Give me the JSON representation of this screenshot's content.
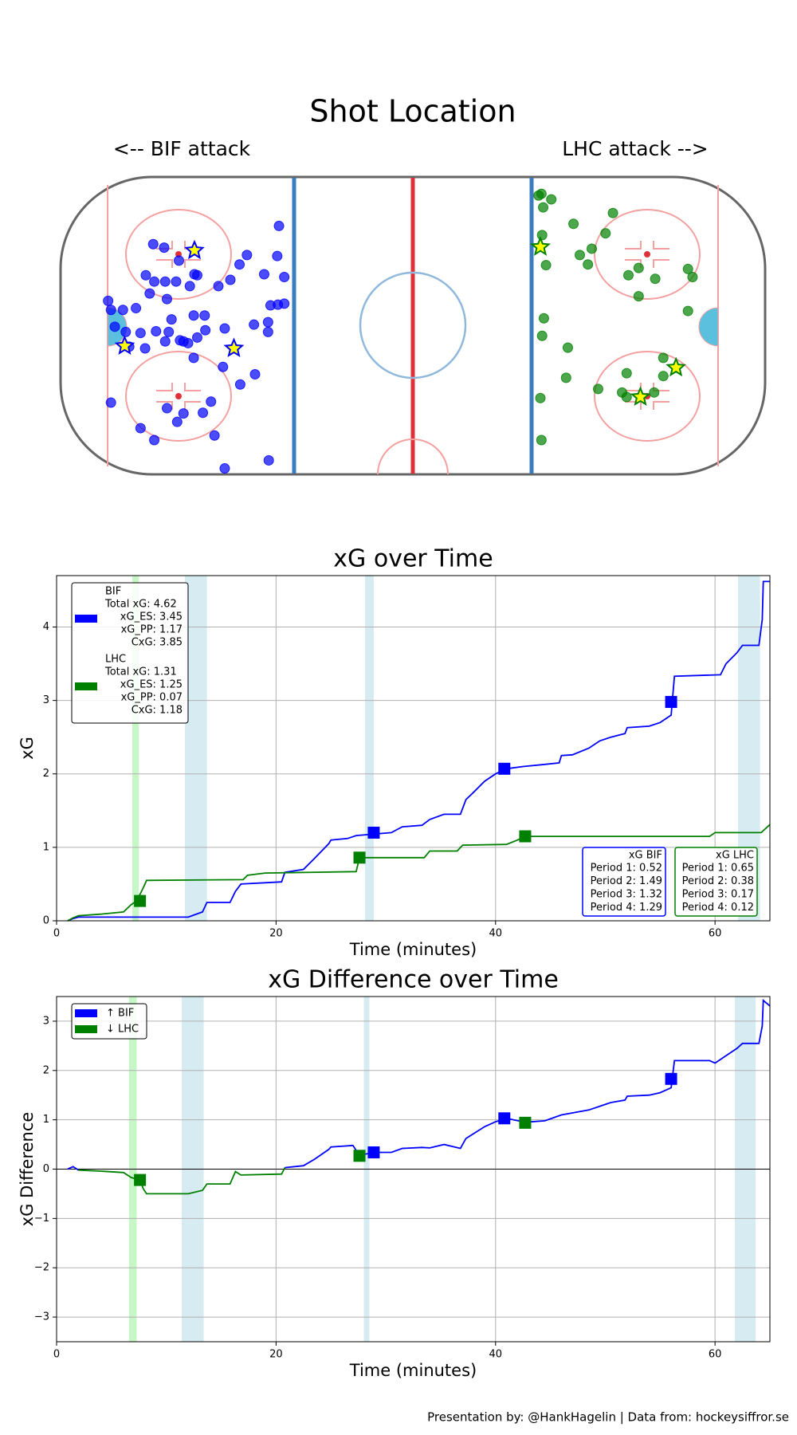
{
  "chart_data": [
    {
      "type": "scatter",
      "title": "Shot Location",
      "annotations": [
        "<-- BIF attack",
        "LHC attack -->"
      ],
      "xlim": [
        -100,
        100
      ],
      "ylim": [
        -42.5,
        42.5
      ],
      "series": [
        {
          "color": "#0000ff",
          "marker": "circle",
          "x": [
            -38.0,
            -73.7,
            -70.6,
            -47.1,
            -38.5,
            -66.4,
            -49.2,
            -42.2,
            -75.8,
            -62.0,
            -61.2,
            -36.5,
            -73.4,
            -70.3,
            -67.2,
            -51.8,
            -55.2,
            -63.3,
            -74.7,
            -69.8,
            -86.5,
            -40.4,
            -38.3,
            -36.5,
            -78.6,
            -85.7,
            -82.3,
            -68.5,
            -62.2,
            -59.1,
            -45.1,
            -41.1,
            -41.1,
            -84.6,
            -53.4,
            -81.5,
            -77.3,
            -72.9,
            -69.3,
            -66.1,
            -65.1,
            -63.8,
            -70.3,
            -61.2,
            -58.9,
            -62.2,
            -80.5,
            -53.9,
            -76.0,
            -44.8,
            -49.0,
            -85.7,
            -69.8,
            -59.6,
            -65.1,
            -57.3,
            -66.9,
            -77.3,
            -56.3,
            -73.4,
            -40.9,
            -53.4
          ],
          "y": [
            28.5,
            23.3,
            22.3,
            20.2,
            19.9,
            18.6,
            17.5,
            14.7,
            14.4,
            14.7,
            14.4,
            13.9,
            12.6,
            12.6,
            12.6,
            13.1,
            11.3,
            11.3,
            9.2,
            7.6,
            7.1,
            5.8,
            6.0,
            6.3,
            5.0,
            4.5,
            4.5,
            1.8,
            2.9,
            2.9,
            0.3,
            1.0,
            -1.8,
            -0.3,
            -0.8,
            -1.8,
            -2.1,
            -1.6,
            -1.8,
            -4.2,
            -4.5,
            -5.0,
            -4.5,
            -3.4,
            -1.3,
            -9.2,
            -6.0,
            -11.8,
            -6.5,
            -13.9,
            -16.8,
            -22.0,
            -23.6,
            -24.9,
            -25.1,
            -21.7,
            -27.5,
            -29.3,
            -31.4,
            -32.7,
            -38.5,
            -40.8
          ]
        },
        {
          "color": "#0000ff",
          "fill": "#ffff00",
          "marker": "star",
          "x": [
            -62.0,
            -50.8,
            -81.8
          ],
          "y": [
            21.5,
            -6.5,
            -5.8
          ]
        },
        {
          "color": "#008000",
          "marker": "circle",
          "x": [
            36.5,
            39.3,
            35.7,
            37.0,
            45.6,
            56.8,
            54.7,
            36.7,
            50.8,
            47.4,
            49.7,
            37.8,
            61.2,
            64.1,
            68.8,
            78.1,
            79.4,
            64.1,
            78.1,
            37.2,
            36.7,
            44.0,
            71.1,
            60.7,
            71.1,
            43.5,
            52.6,
            59.4,
            60.7,
            68.5,
            36.2,
            36.5
          ],
          "y": [
            37.7,
            36.1,
            37.2,
            33.8,
            29.1,
            32.2,
            26.4,
            25.9,
            22.0,
            20.2,
            17.5,
            17.3,
            14.4,
            16.5,
            13.4,
            16.2,
            13.9,
            8.4,
            4.2,
            2.1,
            -2.9,
            -6.3,
            -9.2,
            -13.6,
            -14.4,
            -14.9,
            -18.1,
            -19.1,
            -20.4,
            -19.1,
            -20.7,
            -32.7
          ]
        },
        {
          "color": "#008000",
          "fill": "#ffff00",
          "marker": "star",
          "x": [
            36.2,
            74.7,
            64.6
          ],
          "y": [
            22.5,
            -12.0,
            -20.4
          ]
        }
      ]
    },
    {
      "type": "line",
      "title": "xG over Time",
      "xlabel": "Time (minutes)",
      "ylabel": "xG",
      "xlim": [
        0,
        65
      ],
      "ylim": [
        0,
        4.7
      ],
      "xticks": [
        0,
        20,
        40,
        60
      ],
      "yticks": [
        0,
        1,
        2,
        3,
        4
      ],
      "grid": true,
      "shaded_spans": [
        {
          "start": 6.9,
          "end": 7.5,
          "color": "#90ee90"
        },
        {
          "start": 11.7,
          "end": 13.7,
          "color": "#add8e6"
        },
        {
          "start": 28.1,
          "end": 28.9,
          "color": "#add8e6"
        },
        {
          "start": 62.1,
          "end": 64.1,
          "color": "#add8e6"
        }
      ],
      "series": [
        {
          "name": "BIF",
          "color": "#0000ff",
          "legend_lines": [
            "Total xG: 4.62",
            "xG_ES: 3.45",
            "xG_PP: 1.17",
            "CxG: 3.85"
          ],
          "x": [
            1,
            1.5,
            2,
            12,
            13.3,
            13.7,
            15.8,
            16.3,
            16.8,
            20.5,
            20.8,
            22.5,
            23.5,
            24.8,
            25,
            26.5,
            27.3,
            30.5,
            31.5,
            33.3,
            34,
            35.3,
            36.8,
            37.3,
            38,
            39,
            40,
            41,
            42.5,
            44.5,
            45.8,
            46,
            47,
            48.5,
            49.5,
            50.5,
            51.8,
            52,
            54,
            55,
            56,
            56.1,
            56.3,
            60.5,
            61,
            62,
            62.5,
            64,
            64.3,
            64.4,
            65
          ],
          "values": [
            0,
            0.03,
            0.05,
            0.05,
            0.12,
            0.25,
            0.25,
            0.4,
            0.5,
            0.53,
            0.66,
            0.7,
            0.85,
            1.05,
            1.1,
            1.12,
            1.16,
            1.2,
            1.28,
            1.3,
            1.38,
            1.45,
            1.45,
            1.65,
            1.75,
            1.9,
            2.0,
            2.07,
            2.1,
            2.13,
            2.15,
            2.25,
            2.26,
            2.35,
            2.45,
            2.5,
            2.55,
            2.63,
            2.65,
            2.7,
            2.8,
            2.98,
            3.33,
            3.35,
            3.5,
            3.65,
            3.75,
            3.75,
            4.1,
            4.62,
            4.62
          ],
          "goal_x": [
            28.9,
            40.8,
            56.0
          ],
          "goal_y": [
            1.2,
            2.07,
            2.98
          ],
          "period_box": {
            "title": "xG BIF",
            "lines": [
              "Period 1: 0.52",
              "Period 2: 1.49",
              "Period 3: 1.32",
              "Period 4: 1.29"
            ]
          }
        },
        {
          "name": "LHC",
          "color": "#008000",
          "legend_lines": [
            "Total xG: 1.31",
            "xG_ES: 1.25",
            "xG_PP: 0.07",
            "CxG: 1.18"
          ],
          "x": [
            1,
            1.5,
            2,
            4,
            6.1,
            6.8,
            7.3,
            7.9,
            8.2,
            17,
            17.4,
            19,
            27.3,
            27.6,
            33.5,
            34,
            36.5,
            37,
            41,
            42,
            42.7,
            59.5,
            60,
            64.2,
            65
          ],
          "values": [
            0,
            0.04,
            0.07,
            0.09,
            0.12,
            0.22,
            0.27,
            0.45,
            0.55,
            0.56,
            0.62,
            0.65,
            0.67,
            0.86,
            0.86,
            0.95,
            0.95,
            1.03,
            1.04,
            1.1,
            1.15,
            1.15,
            1.2,
            1.2,
            1.31
          ],
          "goal_x": [
            7.6,
            27.6,
            42.7
          ],
          "goal_y": [
            0.27,
            0.86,
            1.15
          ],
          "period_box": {
            "title": "xG LHC",
            "lines": [
              "Period 1: 0.65",
              "Period 2: 0.38",
              "Period 3: 0.17",
              "Period 4: 0.12"
            ]
          }
        }
      ]
    },
    {
      "type": "line",
      "title": "xG Difference over Time",
      "xlabel": "Time (minutes)",
      "ylabel": "xG Difference",
      "xlim": [
        0,
        65
      ],
      "ylim": [
        -3.5,
        3.5
      ],
      "xticks": [
        0,
        20,
        40,
        60
      ],
      "yticks": [
        {
          "value": -3,
          "label": "−3"
        },
        {
          "value": -2,
          "label": "−2"
        },
        {
          "value": -1,
          "label": "−1"
        },
        0,
        1,
        2,
        3
      ],
      "grid": true,
      "shaded_spans": [
        {
          "start": 6.6,
          "end": 7.3,
          "color": "#90ee90"
        },
        {
          "start": 11.4,
          "end": 13.4,
          "color": "#add8e6"
        },
        {
          "start": 28.0,
          "end": 28.5,
          "color": "#add8e6"
        },
        {
          "start": 61.8,
          "end": 63.7,
          "color": "#add8e6"
        }
      ],
      "legend": [
        {
          "name": "↑ BIF",
          "color": "#0000ff"
        },
        {
          "name": "↓ LHC",
          "color": "#008000"
        }
      ],
      "series": [
        {
          "color_positive": "#0000ff",
          "color_negative": "#008000",
          "x": [
            1,
            1.5,
            2,
            4,
            6.1,
            6.8,
            7.6,
            7.9,
            8.2,
            12,
            13.3,
            13.7,
            15.8,
            16.3,
            16.8,
            20.5,
            20.8,
            22.5,
            23.5,
            24.8,
            25,
            27,
            27.6,
            28.9,
            30.5,
            31.5,
            33.3,
            34,
            35.3,
            36.8,
            37.3,
            38,
            39,
            40,
            41,
            42.7,
            44.5,
            46,
            48.5,
            50.5,
            51.8,
            52,
            54,
            55,
            56,
            56.1,
            56.3,
            59.5,
            60,
            61,
            62,
            62.5,
            64,
            64.3,
            64.4,
            65
          ],
          "values": [
            0,
            0.05,
            -0.02,
            -0.04,
            -0.07,
            -0.17,
            -0.22,
            -0.4,
            -0.5,
            -0.5,
            -0.43,
            -0.3,
            -0.3,
            -0.05,
            -0.12,
            -0.1,
            0.03,
            0.07,
            0.2,
            0.4,
            0.45,
            0.48,
            0.28,
            0.34,
            0.34,
            0.42,
            0.44,
            0.43,
            0.5,
            0.42,
            0.62,
            0.72,
            0.86,
            0.96,
            1.03,
            0.95,
            0.98,
            1.1,
            1.2,
            1.35,
            1.4,
            1.48,
            1.5,
            1.55,
            1.65,
            1.83,
            2.2,
            2.2,
            2.15,
            2.3,
            2.45,
            2.55,
            2.55,
            2.9,
            3.42,
            3.31
          ]
        },
        {
          "color": "#0000ff",
          "goal_x": [
            28.9,
            40.8,
            56.0
          ],
          "goal_y": [
            0.34,
            1.03,
            1.83
          ]
        },
        {
          "color": "#008000",
          "goal_x": [
            7.6,
            27.6,
            42.7
          ],
          "goal_y": [
            -0.22,
            0.27,
            0.94
          ]
        }
      ]
    }
  ],
  "footer": "Presentation by: @HankHagelin | Data from: hockeysiffror.se"
}
